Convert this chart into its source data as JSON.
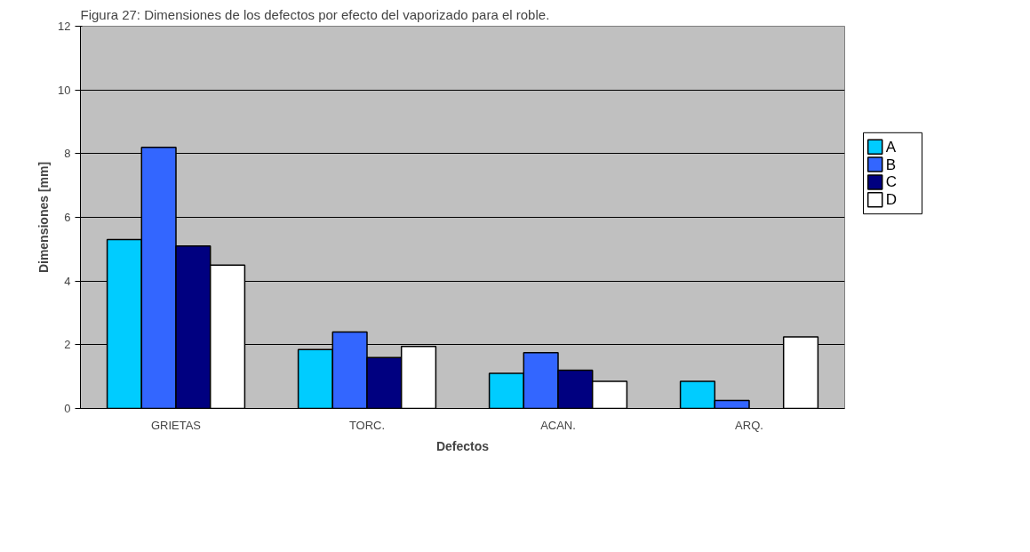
{
  "chart_data": {
    "type": "bar",
    "title": "Figura 27: Dimensiones de los defectos por efecto del vaporizado para el roble.",
    "xlabel": "Defectos",
    "ylabel": "Dimensiones [mm]",
    "categories": [
      "GRIETAS",
      "TORC.",
      "ACAN.",
      "ARQ."
    ],
    "series": [
      {
        "name": "A",
        "color": "#00ccff",
        "values": [
          5.3,
          1.85,
          1.1,
          0.85
        ]
      },
      {
        "name": "B",
        "color": "#3366ff",
        "values": [
          8.2,
          2.4,
          1.75,
          0.25
        ]
      },
      {
        "name": "C",
        "color": "#000080",
        "values": [
          5.1,
          1.6,
          1.2,
          null
        ]
      },
      {
        "name": "D",
        "color": "#ffffff",
        "values": [
          4.5,
          1.95,
          0.85,
          2.25
        ]
      }
    ],
    "ylim": [
      0,
      12
    ],
    "yticks": [
      0,
      2,
      4,
      6,
      8,
      10,
      12
    ],
    "grid": "y",
    "legend": "right"
  }
}
